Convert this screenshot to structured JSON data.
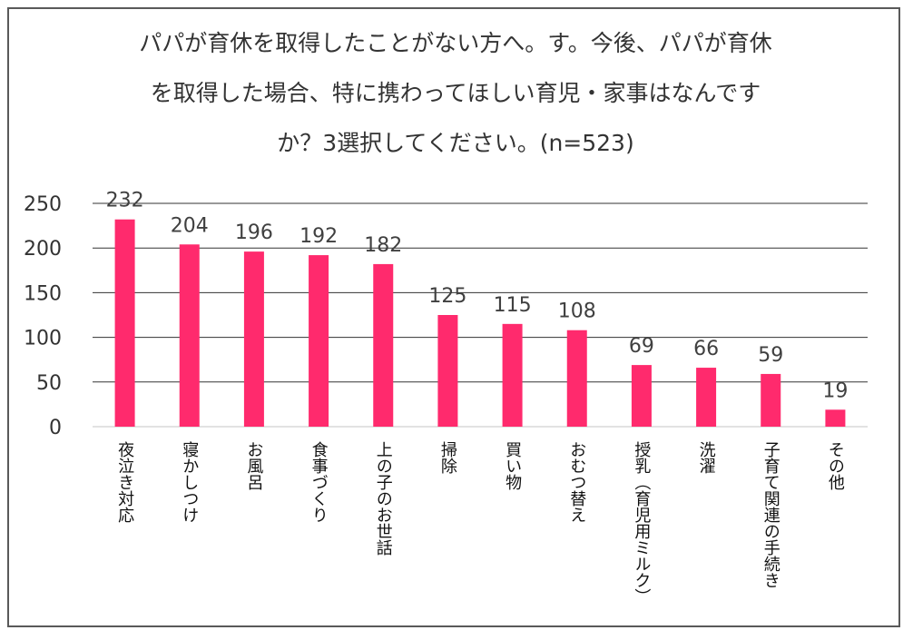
{
  "chart_data": {
    "type": "bar",
    "title_lines": [
      "パパが育休を取得したことがない方へ。す。今後、パパが育休",
      "を取得した場合、特に携わってほしい育児・家事はなんです",
      "か？3選択してください。(n=523)"
    ],
    "categories": [
      "夜泣き対応",
      "寝かしつけ",
      "お風呂",
      "食事づくり",
      "上の子のお世話",
      "掃除",
      "買い物",
      "おむつ替え",
      "授乳（育児用ミルク）",
      "洗濯",
      "子育て関連の手続き",
      "その他"
    ],
    "values": [
      232,
      204,
      196,
      192,
      182,
      125,
      115,
      108,
      69,
      66,
      59,
      19
    ],
    "ylim": [
      0,
      250
    ],
    "yticks": [
      0,
      50,
      100,
      150,
      200,
      250
    ],
    "grid": true,
    "bar_color": "#ff2a6d",
    "grid_color": "#333333",
    "axis_color": "#d9d9d9",
    "text_color": "#333333"
  }
}
